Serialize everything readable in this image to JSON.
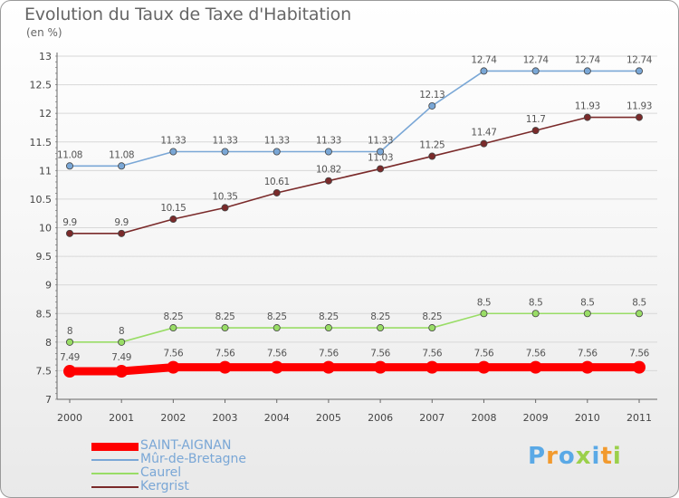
{
  "title": "Evolution du Taux de Taxe d'Habitation",
  "unit_label": "(en %)",
  "chart_data": {
    "type": "line",
    "title": "Evolution du Taux de Taxe d'Habitation",
    "ylabel": "(en %)",
    "xlabel": "",
    "x": [
      2000,
      2001,
      2002,
      2003,
      2004,
      2005,
      2006,
      2007,
      2008,
      2009,
      2010,
      2011
    ],
    "ylim": [
      7,
      13
    ],
    "yticks": [
      "7",
      "7.5",
      "8",
      "8.5",
      "9",
      "9.5",
      "10",
      "10.5",
      "11",
      "11.5",
      "12",
      "12.5",
      "13"
    ],
    "grid": true,
    "legend_position": "bottom-left",
    "series": [
      {
        "name": "SAINT-AIGNAN",
        "color": "#ff0000",
        "values": [
          7.49,
          7.49,
          7.56,
          7.56,
          7.56,
          7.56,
          7.56,
          7.56,
          7.56,
          7.56,
          7.56,
          7.56
        ],
        "labels": [
          "7.49",
          "7.49",
          "7.56",
          "7.56",
          "7.56",
          "7.56",
          "7.56",
          "7.56",
          "7.56",
          "7.56",
          "7.56",
          "7.56"
        ]
      },
      {
        "name": "Mûr-de-Bretagne",
        "color": "#7aa7d6",
        "values": [
          11.08,
          11.08,
          11.33,
          11.33,
          11.33,
          11.33,
          11.33,
          12.13,
          12.74,
          12.74,
          12.74,
          12.74
        ],
        "labels": [
          "11.08",
          "11.08",
          "11.33",
          "11.33",
          "11.33",
          "11.33",
          "11.33",
          "12.13",
          "12.74",
          "12.74",
          "12.74",
          "12.74"
        ]
      },
      {
        "name": "Caurel",
        "color": "#99dd66",
        "values": [
          8,
          8,
          8.25,
          8.25,
          8.25,
          8.25,
          8.25,
          8.25,
          8.5,
          8.5,
          8.5,
          8.5
        ],
        "labels": [
          "8",
          "8",
          "8.25",
          "8.25",
          "8.25",
          "8.25",
          "8.25",
          "8.25",
          "8.5",
          "8.5",
          "8.5",
          "8.5"
        ]
      },
      {
        "name": "Kergrist",
        "color": "#7a2a2a",
        "values": [
          9.9,
          9.9,
          10.15,
          10.35,
          10.61,
          10.82,
          11.03,
          11.25,
          11.47,
          11.7,
          11.93,
          11.93
        ],
        "labels": [
          "9.9",
          "9.9",
          "10.15",
          "10.35",
          "10.61",
          "10.82",
          "11.03",
          "11.25",
          "11.47",
          "11.7",
          "11.93",
          "11.93"
        ]
      }
    ]
  },
  "legend": {
    "items": [
      {
        "label": "SAINT-AIGNAN"
      },
      {
        "label": "Mûr-de-Bretagne"
      },
      {
        "label": "Caurel"
      },
      {
        "label": "Kergrist"
      }
    ]
  },
  "logo": {
    "text": "Proxiti",
    "colors": [
      "#5aa9e6",
      "#f29a2e",
      "#5aa9e6",
      "#9bd04b",
      "#5aa9e6",
      "#f29a2e",
      "#9bd04b"
    ]
  }
}
